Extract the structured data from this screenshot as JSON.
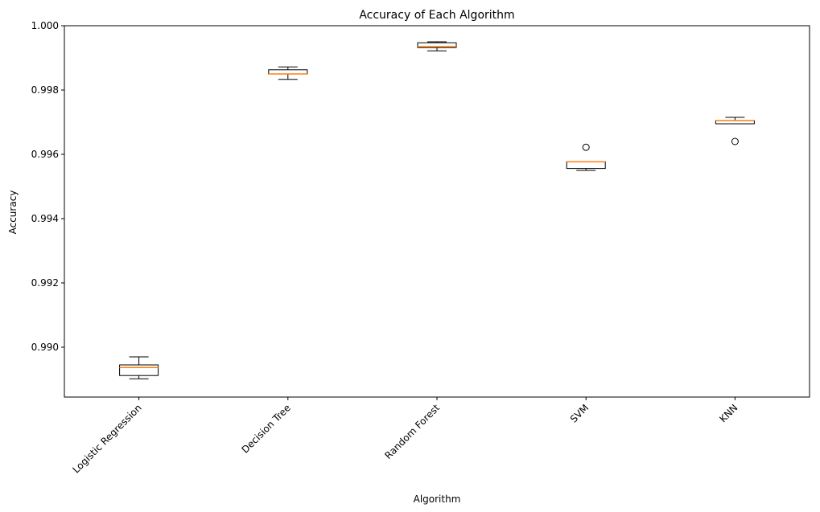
{
  "chart_data": {
    "type": "box",
    "title": "Accuracy of Each Algorithm",
    "xlabel": "Algorithm",
    "ylabel": "Accuracy",
    "ylim": [
      0.98845,
      1.0
    ],
    "yticks": [
      "0.990",
      "0.992",
      "0.994",
      "0.996",
      "0.998",
      "1.000"
    ],
    "ytick_values": [
      0.99,
      0.992,
      0.994,
      0.996,
      0.998,
      1.0
    ],
    "grid": false,
    "colors": {
      "box": "#000000",
      "median": "#ff7f0e",
      "flier": "#000000"
    },
    "categories": [
      "Logistic Regression",
      "Decision Tree",
      "Random Forest",
      "SVM",
      "KNN"
    ],
    "boxes": [
      {
        "name": "Logistic Regression",
        "whislo": 0.98902,
        "q1": 0.98912,
        "med": 0.98937,
        "q3": 0.98945,
        "whishi": 0.9897,
        "fliers": []
      },
      {
        "name": "Decision Tree",
        "whislo": 0.99833,
        "q1": 0.9985,
        "med": 0.9985,
        "q3": 0.99863,
        "whishi": 0.99872,
        "fliers": []
      },
      {
        "name": "Random Forest",
        "whislo": 0.99922,
        "q1": 0.99932,
        "med": 0.99935,
        "q3": 0.99947,
        "whishi": 0.9995,
        "fliers": []
      },
      {
        "name": "SVM",
        "whislo": 0.9955,
        "q1": 0.99556,
        "med": 0.99577,
        "q3": 0.99577,
        "whishi": 0.99577,
        "fliers": [
          0.99622
        ]
      },
      {
        "name": "KNN",
        "whislo": 0.99695,
        "q1": 0.99695,
        "med": 0.99705,
        "q3": 0.99705,
        "whishi": 0.99715,
        "fliers": [
          0.9964
        ]
      }
    ]
  }
}
